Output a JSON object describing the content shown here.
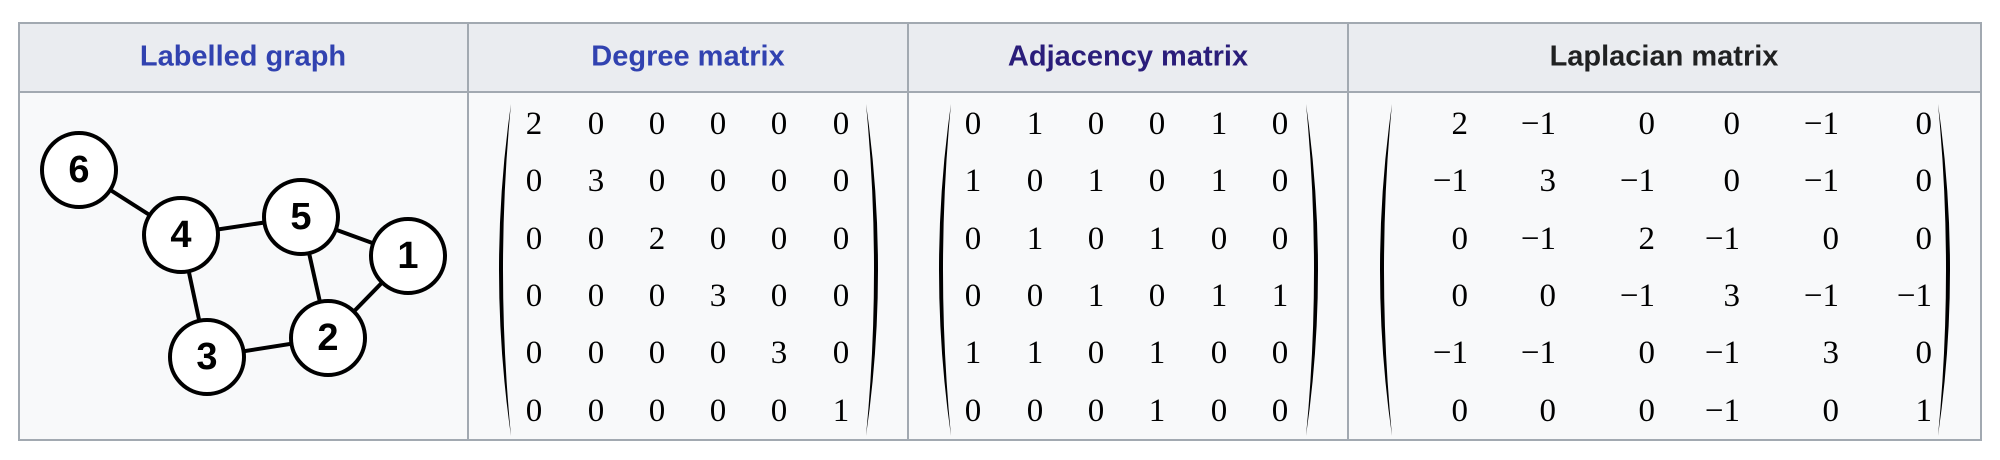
{
  "header": [
    "Labelled graph",
    "Degree matrix",
    "Adjacency matrix",
    "Laplacian matrix"
  ],
  "graph": {
    "nodes": [
      "6",
      "4",
      "5",
      "1",
      "2",
      "3"
    ]
  },
  "matrices": [
    {
      "rows": [
        [
          "2",
          "0",
          "0",
          "0",
          "0",
          "0"
        ],
        [
          "0",
          "3",
          "0",
          "0",
          "0",
          "0"
        ],
        [
          "0",
          "0",
          "2",
          "0",
          "0",
          "0"
        ],
        [
          "0",
          "0",
          "0",
          "3",
          "0",
          "0"
        ],
        [
          "0",
          "0",
          "0",
          "0",
          "3",
          "0"
        ],
        [
          "0",
          "0",
          "0",
          "0",
          "0",
          "1"
        ]
      ]
    },
    {
      "rows": [
        [
          "0",
          "1",
          "0",
          "0",
          "1",
          "0"
        ],
        [
          "1",
          "0",
          "1",
          "0",
          "1",
          "0"
        ],
        [
          "0",
          "1",
          "0",
          "1",
          "0",
          "0"
        ],
        [
          "0",
          "0",
          "1",
          "0",
          "1",
          "1"
        ],
        [
          "1",
          "1",
          "0",
          "1",
          "0",
          "0"
        ],
        [
          "0",
          "0",
          "0",
          "1",
          "0",
          "0"
        ]
      ]
    },
    {
      "rows": [
        [
          "2",
          "−1",
          "0",
          "0",
          "−1",
          "0"
        ],
        [
          "−1",
          "3",
          "−1",
          "0",
          "−1",
          "0"
        ],
        [
          "0",
          "−1",
          "2",
          "−1",
          "0",
          "0"
        ],
        [
          "0",
          "0",
          "−1",
          "3",
          "−1",
          "−1"
        ],
        [
          "−1",
          "−1",
          "0",
          "−1",
          "3",
          "0"
        ],
        [
          "0",
          "0",
          "0",
          "−1",
          "0",
          "1"
        ]
      ]
    }
  ]
}
